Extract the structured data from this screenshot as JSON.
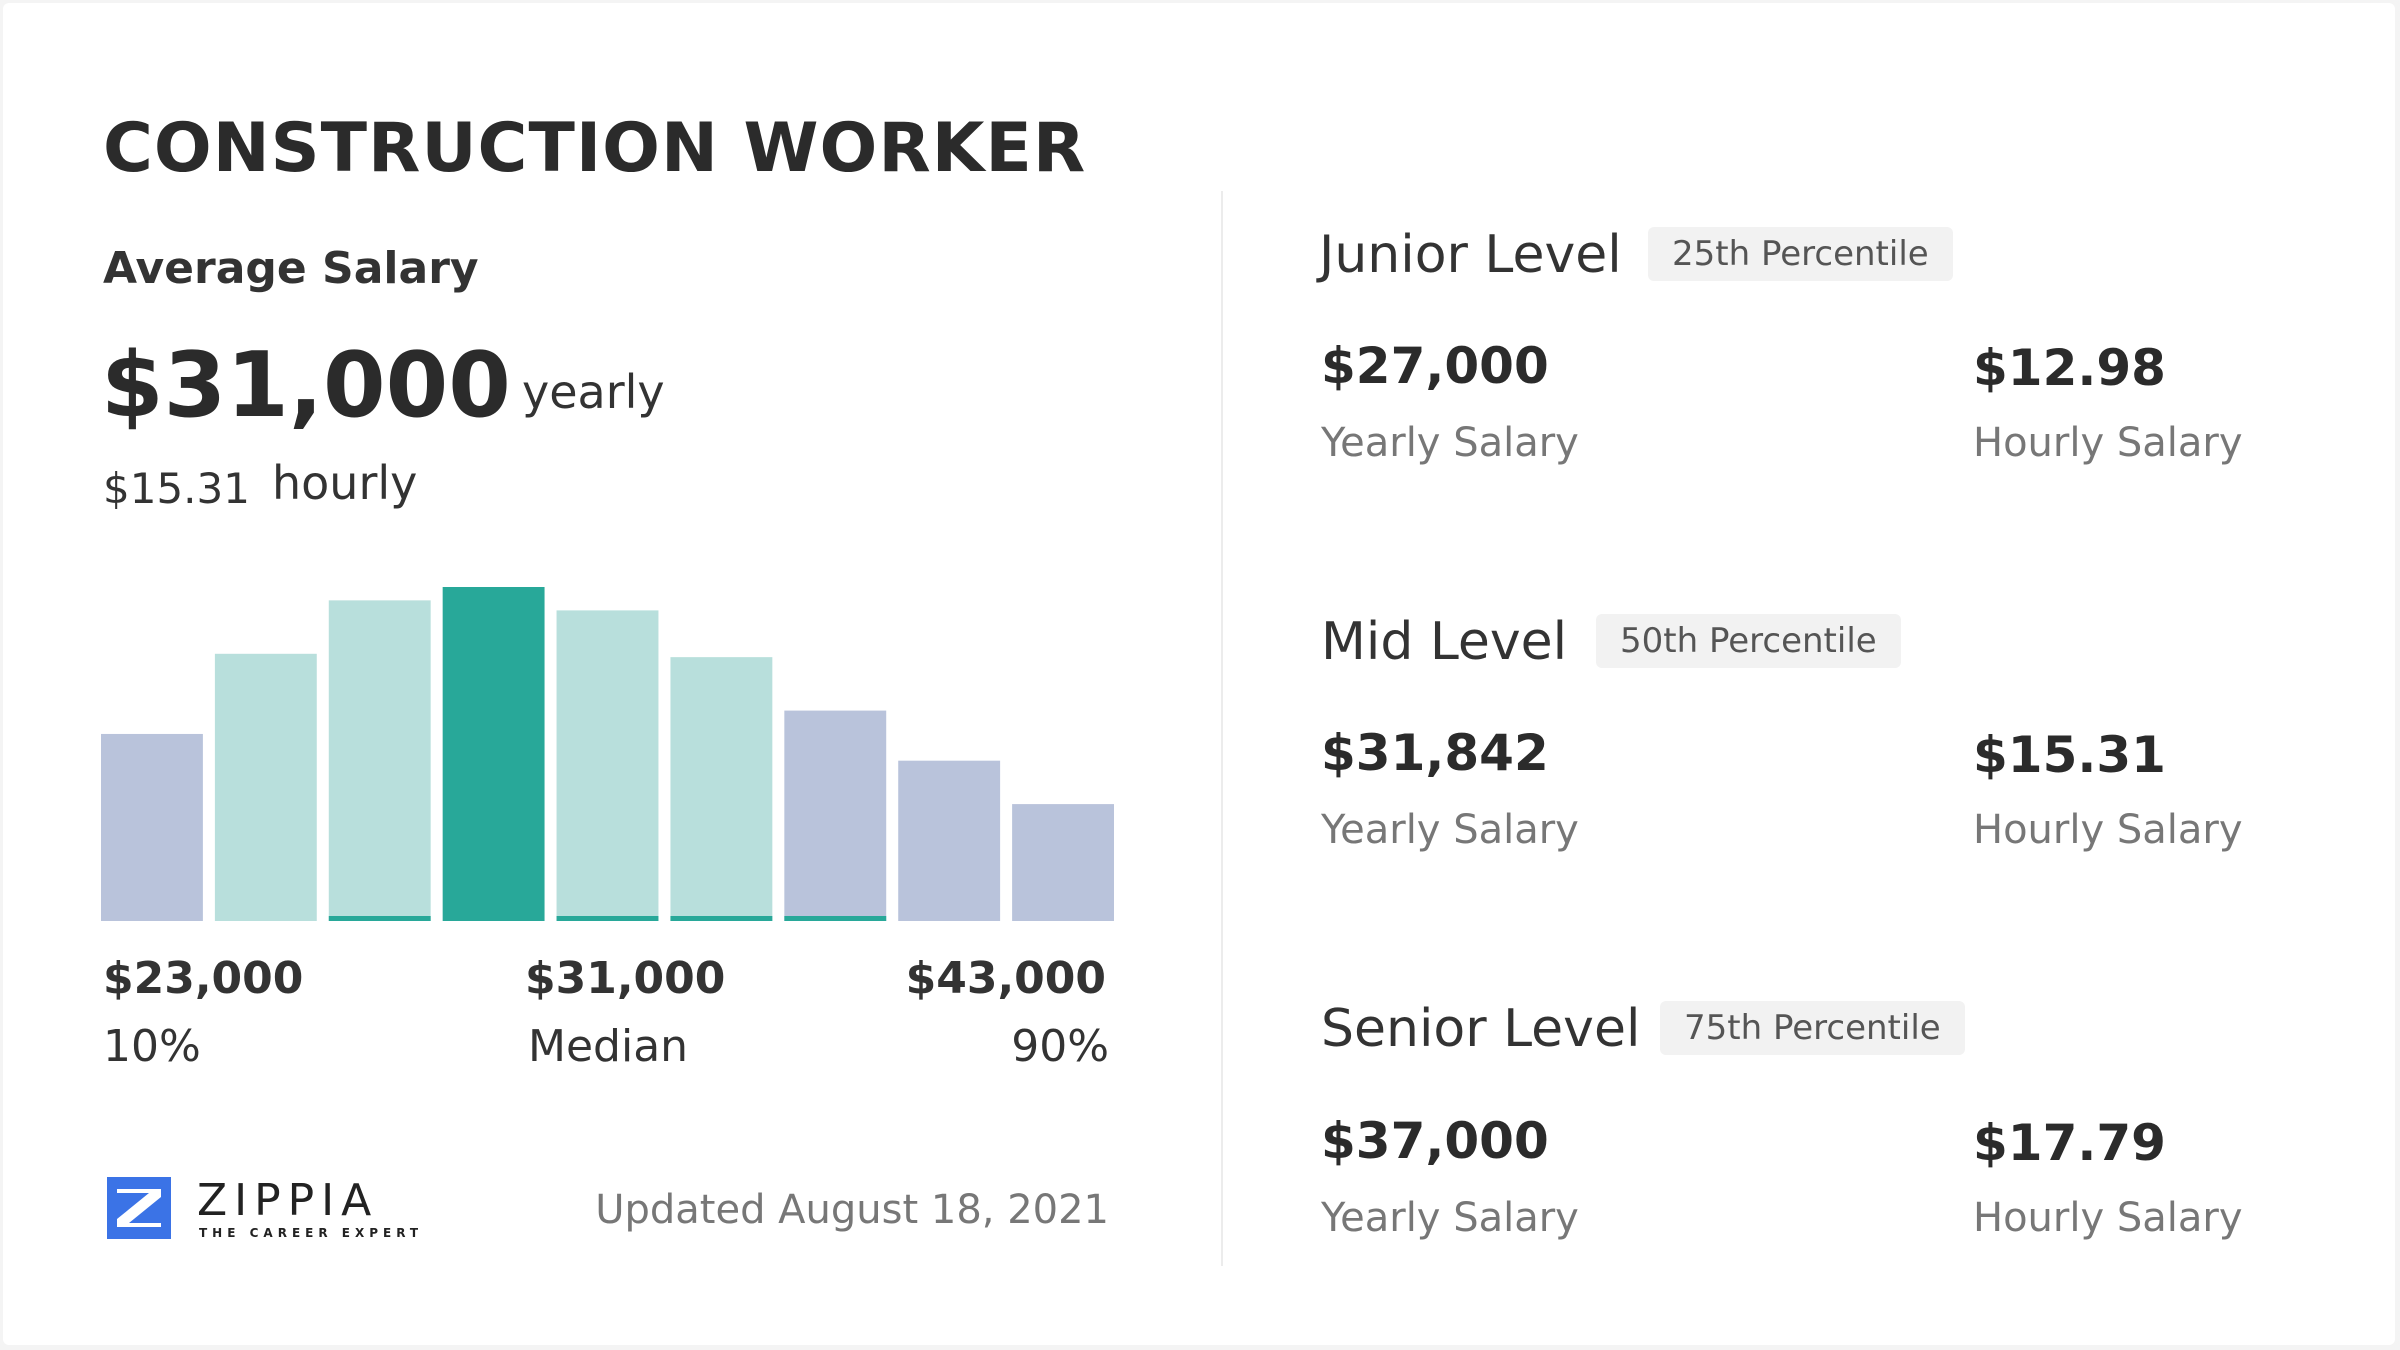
{
  "title": "CONSTRUCTION WORKER",
  "average": {
    "label": "Average Salary",
    "yearly_value": "$31,000",
    "yearly_unit": "yearly",
    "hourly_value": "$15.31",
    "hourly_unit": "hourly"
  },
  "chart_data": {
    "type": "bar",
    "relative_heights_percent": [
      56,
      80,
      96,
      100,
      93,
      79,
      63,
      48,
      35
    ],
    "colors": [
      "#b9c3db",
      "#b8dfdc",
      "#b8dfdc",
      "#28a899",
      "#b8dfdc",
      "#b8dfdc",
      "#b9c3db",
      "#b9c3db",
      "#b9c3db"
    ],
    "underline_accent": [
      false,
      false,
      true,
      false,
      true,
      true,
      true,
      false,
      false
    ],
    "accent_color": "#28a899",
    "labels": [
      {
        "value": "$23,000",
        "caption": "10%"
      },
      {
        "value": "$31,000",
        "caption": "Median"
      },
      {
        "value": "$43,000",
        "caption": "90%"
      }
    ]
  },
  "logo": {
    "name": "ZIPPIA",
    "tagline": "THE CAREER EXPERT",
    "color": "#3b73e6"
  },
  "updated": "Updated August 18, 2021",
  "levels": [
    {
      "name": "Junior Level",
      "badge": "25th Percentile",
      "yearly": "$27,000",
      "yearly_label": "Yearly Salary",
      "hourly": "$12.98",
      "hourly_label": "Hourly Salary"
    },
    {
      "name": "Mid Level",
      "badge": "50th Percentile",
      "yearly": "$31,842",
      "yearly_label": "Yearly Salary",
      "hourly": "$15.31",
      "hourly_label": "Hourly Salary"
    },
    {
      "name": "Senior Level",
      "badge": "75th Percentile",
      "yearly": "$37,000",
      "yearly_label": "Yearly Salary",
      "hourly": "$17.79",
      "hourly_label": "Hourly Salary"
    }
  ]
}
